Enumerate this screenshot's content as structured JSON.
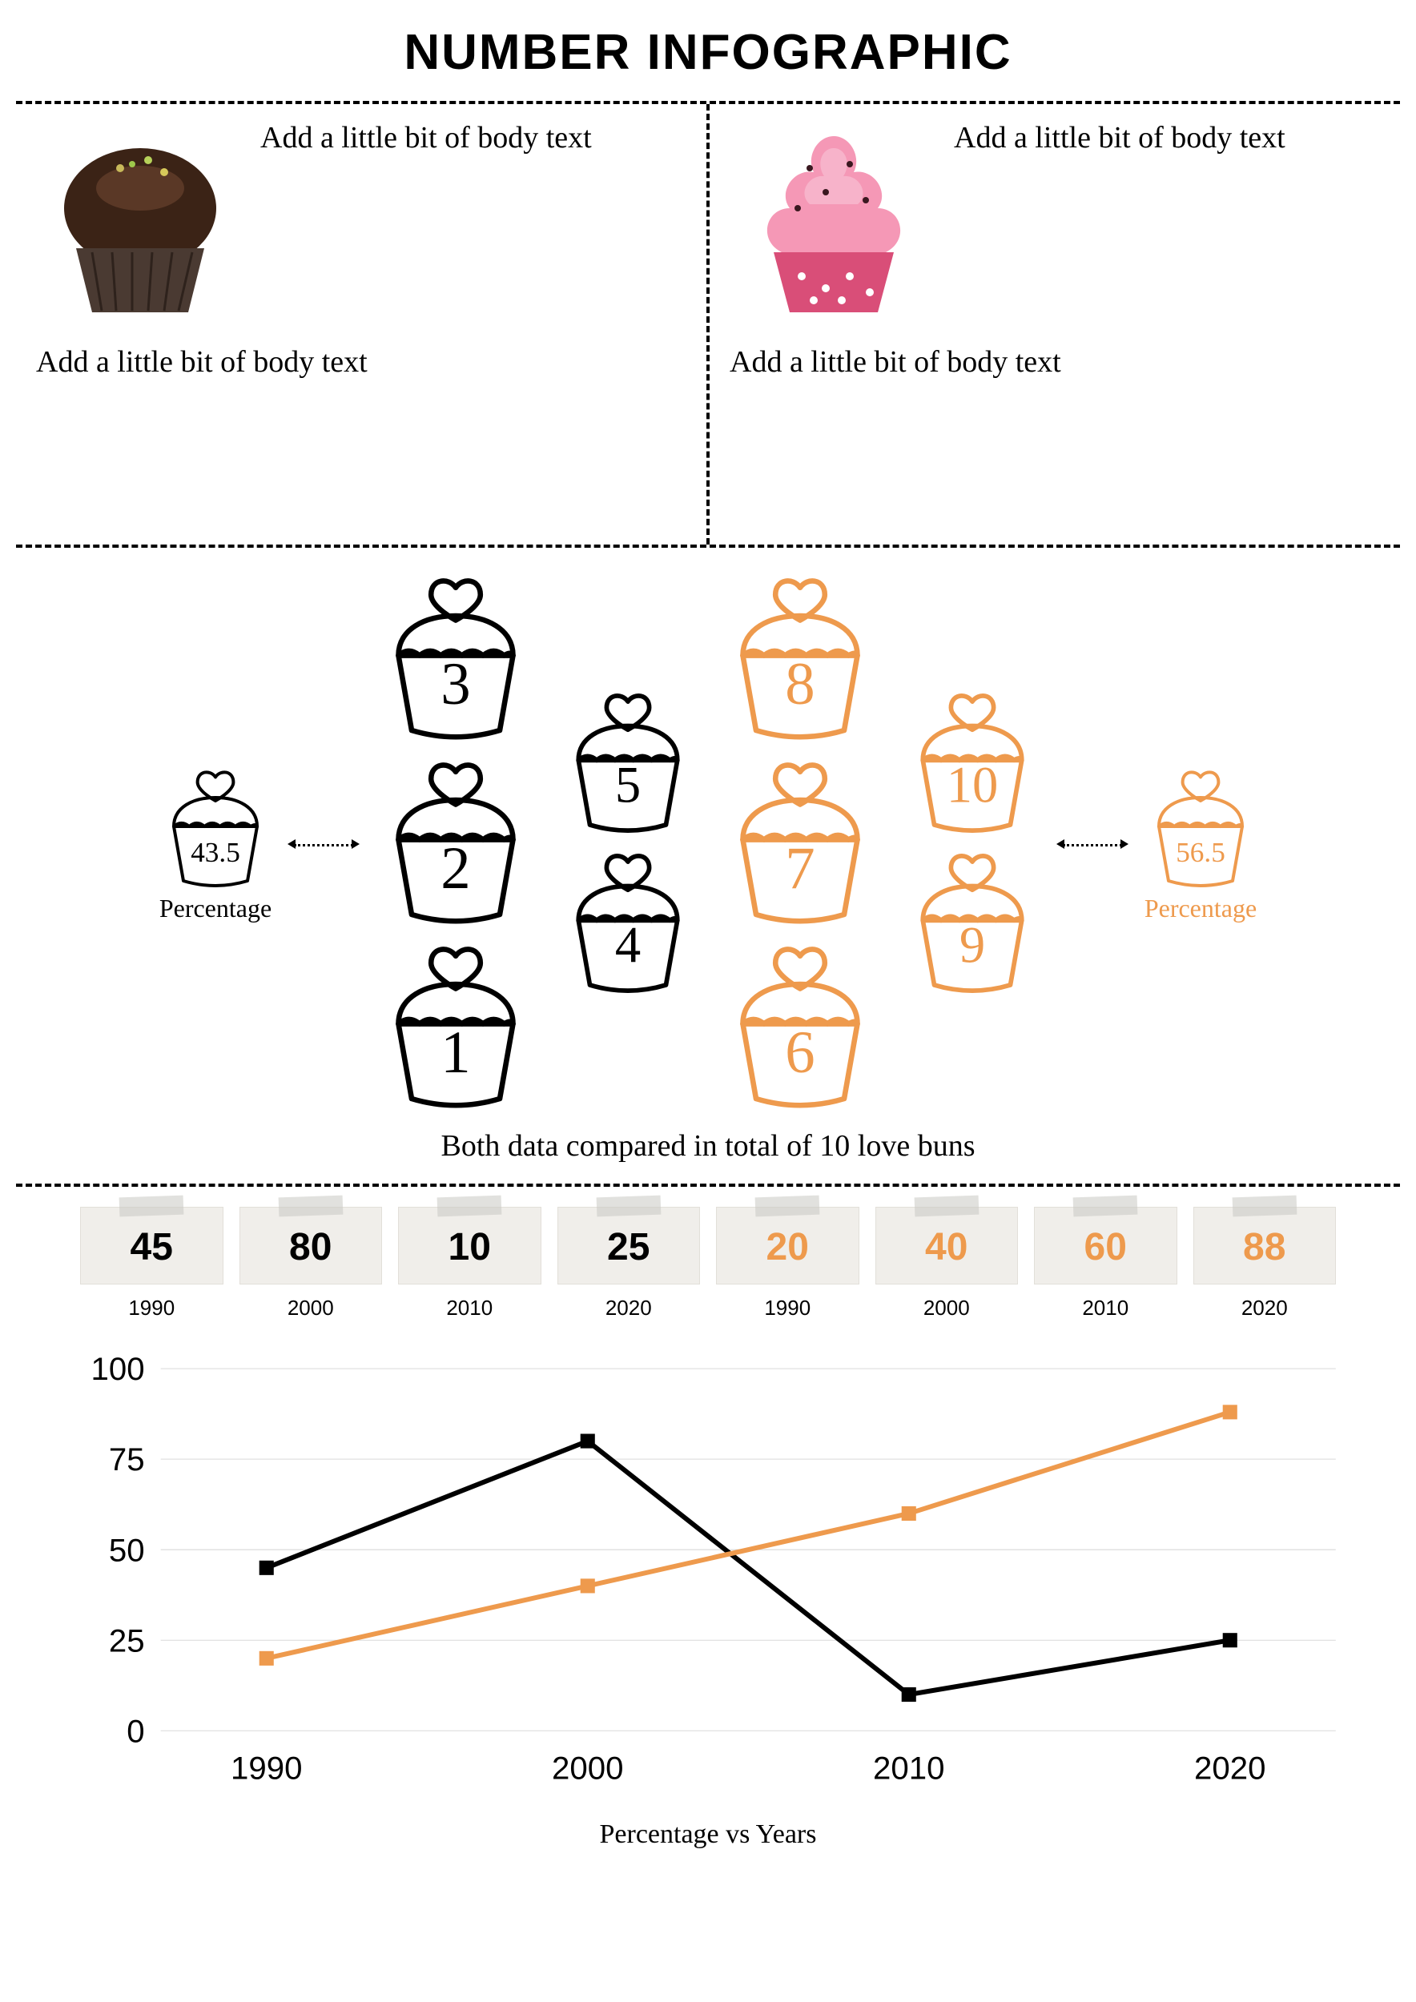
{
  "title": "NUMBER INFOGRAPHIC",
  "colors": {
    "black": "#000000",
    "orange": "#ee9a4d",
    "paper_bg": "#f0eeea",
    "paper_border": "#e2dfd9",
    "grid": "#d9d9d9",
    "white": "#ffffff"
  },
  "top": {
    "left": {
      "image_name": "chocolate-cupcake",
      "text_right": "Add a little bit of body text",
      "text_below": "Add a little bit of body text"
    },
    "right": {
      "image_name": "pink-frosting-cupcake",
      "text_right": "Add a little bit of body text",
      "text_below": "Add a little bit of body text"
    },
    "text_fontsize": 38
  },
  "middle": {
    "left_percent": {
      "value": "43.5",
      "label": "Percentage",
      "color": "#000000"
    },
    "right_percent": {
      "value": "56.5",
      "label": "Percentage",
      "color": "#ee9a4d"
    },
    "black_numbers": [
      "1",
      "2",
      "3",
      "4",
      "5"
    ],
    "orange_numbers": [
      "6",
      "7",
      "8",
      "9",
      "10"
    ],
    "stroke_width": 6,
    "number_fontsize": 68,
    "caption": "Both data compared in total of 10 love buns",
    "caption_fontsize": 38
  },
  "tapes": {
    "items": [
      {
        "value": "45",
        "year": "1990",
        "color": "#000000"
      },
      {
        "value": "80",
        "year": "2000",
        "color": "#000000"
      },
      {
        "value": "10",
        "year": "2010",
        "color": "#000000"
      },
      {
        "value": "25",
        "year": "2020",
        "color": "#000000"
      },
      {
        "value": "20",
        "year": "1990",
        "color": "#ee9a4d"
      },
      {
        "value": "40",
        "year": "2000",
        "color": "#ee9a4d"
      },
      {
        "value": "60",
        "year": "2010",
        "color": "#ee9a4d"
      },
      {
        "value": "88",
        "year": "2020",
        "color": "#ee9a4d"
      }
    ],
    "value_fontsize": 48,
    "year_fontsize": 26
  },
  "chart": {
    "type": "line",
    "x_categories": [
      "1990",
      "2000",
      "2010",
      "2020"
    ],
    "y_ticks": [
      0,
      25,
      50,
      75,
      100
    ],
    "ylim": [
      0,
      100
    ],
    "series": [
      {
        "name": "black-series",
        "color": "#000000",
        "values": [
          45,
          80,
          10,
          25
        ],
        "marker": "square",
        "marker_size": 18,
        "line_width": 6
      },
      {
        "name": "orange-series",
        "color": "#ee9a4d",
        "values": [
          20,
          40,
          60,
          88
        ],
        "marker": "square",
        "marker_size": 18,
        "line_width": 6
      }
    ],
    "axis_fontsize": 40,
    "tick_fontsize": 40,
    "caption": "Percentage vs Years",
    "caption_fontsize": 34,
    "grid_color": "#d9d9d9",
    "background": "#ffffff"
  }
}
